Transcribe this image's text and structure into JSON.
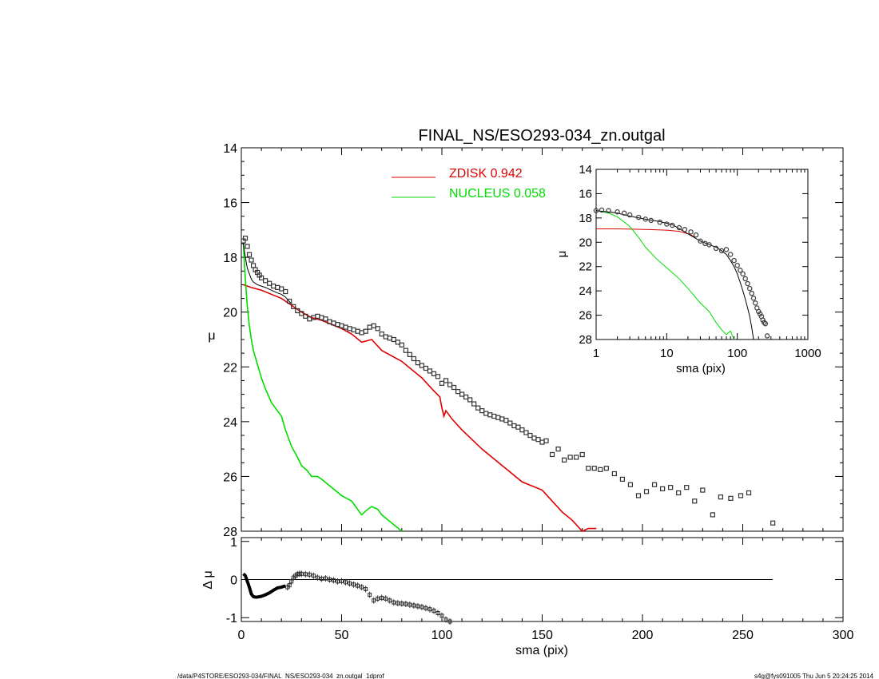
{
  "chart_data": [
    {
      "panel": "main",
      "type": "line",
      "title": "FINAL_NS/ESO293-034_zn.outgal",
      "xlabel": "",
      "ylabel": "μ",
      "xlim": [
        0,
        300
      ],
      "ylim": [
        28,
        14
      ],
      "x_ticks": [
        "0",
        "50",
        "100",
        "150",
        "200",
        "250",
        "300"
      ],
      "y_ticks": [
        "14",
        "16",
        "18",
        "20",
        "22",
        "24",
        "26",
        "28"
      ],
      "legend_position": "top-center",
      "series": [
        {
          "name": "ZDISK",
          "legend_value": "0.942",
          "style": "line",
          "color": "#dd0000",
          "x": [
            1,
            5,
            10,
            15,
            20,
            25,
            30,
            35,
            40,
            45,
            50,
            55,
            60,
            65,
            70,
            75,
            80,
            85,
            90,
            95,
            99,
            100,
            101,
            102,
            105,
            110,
            120,
            130,
            140,
            150,
            160,
            165,
            170,
            173,
            177
          ],
          "y": [
            19.0,
            19.1,
            19.2,
            19.35,
            19.5,
            19.75,
            20.0,
            20.2,
            20.3,
            20.45,
            20.6,
            20.8,
            21.1,
            21.0,
            21.4,
            21.6,
            21.8,
            22.1,
            22.4,
            22.8,
            23.1,
            23.5,
            23.8,
            23.6,
            23.9,
            24.3,
            25.0,
            25.6,
            26.2,
            26.5,
            27.3,
            27.6,
            28.0,
            27.9,
            27.9
          ]
        },
        {
          "name": "NUCLEUS",
          "legend_value": "0.058",
          "style": "line",
          "color": "#00dd00",
          "x": [
            1,
            2,
            3,
            4,
            5,
            6,
            8,
            10,
            12,
            15,
            18,
            20,
            22,
            25,
            28,
            30,
            33,
            35,
            38,
            40,
            45,
            50,
            55,
            57,
            60,
            63,
            65,
            68,
            70,
            75,
            80
          ],
          "y": [
            17.5,
            18.8,
            19.8,
            20.5,
            21.0,
            21.4,
            21.9,
            22.4,
            22.8,
            23.3,
            23.6,
            23.8,
            24.3,
            24.9,
            25.3,
            25.6,
            25.8,
            26.0,
            26.0,
            26.1,
            26.4,
            26.7,
            26.9,
            27.1,
            27.4,
            27.2,
            27.1,
            27.2,
            27.4,
            27.7,
            28.0
          ]
        },
        {
          "name": "",
          "style": "line",
          "color": "#000000",
          "x": [
            1,
            2,
            3,
            4,
            5,
            6,
            8,
            10,
            12,
            15,
            18,
            20,
            22,
            25
          ],
          "y": [
            17.5,
            18.0,
            18.4,
            18.6,
            18.8,
            18.9,
            19.0,
            19.05,
            19.1,
            19.2,
            19.3,
            19.35,
            19.45,
            19.7
          ]
        },
        {
          "name": "",
          "style": "square-markers",
          "color": "#333333",
          "x": [
            1,
            2,
            3,
            4,
            5,
            6,
            7,
            8,
            9,
            10,
            12,
            14,
            16,
            18,
            20,
            22,
            24,
            26,
            28,
            30,
            32,
            34,
            36,
            38,
            40,
            42,
            44,
            46,
            48,
            50,
            52,
            54,
            56,
            58,
            60,
            62,
            64,
            66,
            68,
            70,
            72,
            74,
            76,
            78,
            80,
            82,
            84,
            86,
            88,
            90,
            92,
            94,
            96,
            98,
            100,
            102,
            104,
            106,
            108,
            110,
            112,
            114,
            116,
            118,
            120,
            122,
            124,
            126,
            128,
            130,
            132,
            134,
            136,
            138,
            140,
            142,
            144,
            146,
            148,
            150,
            152,
            155,
            158,
            161,
            164,
            167,
            170,
            173,
            176,
            179,
            182,
            186,
            190,
            194,
            198,
            202,
            206,
            210,
            214,
            218,
            222,
            226,
            230,
            235,
            239,
            244,
            249,
            253,
            265
          ],
          "y": [
            17.4,
            17.3,
            17.6,
            17.9,
            18.1,
            18.3,
            18.45,
            18.55,
            18.65,
            18.75,
            18.85,
            18.95,
            19.05,
            19.1,
            19.15,
            19.25,
            19.6,
            19.8,
            19.95,
            20.05,
            20.15,
            20.25,
            20.2,
            20.15,
            20.2,
            20.25,
            20.35,
            20.4,
            20.45,
            20.5,
            20.55,
            20.6,
            20.65,
            20.7,
            20.75,
            20.7,
            20.55,
            20.5,
            20.6,
            20.8,
            20.9,
            20.95,
            21.0,
            21.1,
            21.2,
            21.4,
            21.55,
            21.7,
            21.85,
            21.95,
            22.05,
            22.15,
            22.25,
            22.35,
            22.6,
            22.5,
            22.65,
            22.75,
            22.9,
            23.0,
            23.1,
            23.2,
            23.35,
            23.5,
            23.6,
            23.7,
            23.75,
            23.8,
            23.85,
            23.9,
            23.95,
            24.05,
            24.15,
            24.2,
            24.3,
            24.4,
            24.5,
            24.6,
            24.65,
            24.75,
            24.7,
            25.2,
            25.0,
            25.4,
            25.3,
            25.3,
            25.2,
            25.7,
            25.7,
            25.75,
            25.7,
            25.9,
            26.1,
            26.3,
            26.7,
            26.55,
            26.3,
            26.45,
            26.4,
            26.6,
            26.4,
            26.9,
            26.5,
            27.4,
            26.75,
            26.8,
            26.7,
            26.6,
            27.7
          ]
        }
      ]
    },
    {
      "panel": "residual",
      "type": "scatter",
      "xlabel": "sma (pix)",
      "ylabel": "Δ μ",
      "xlim": [
        0,
        300
      ],
      "ylim": [
        -1.1,
        1.1
      ],
      "x_ticks": [
        "0",
        "50",
        "100",
        "150",
        "200",
        "250",
        "300"
      ],
      "y_ticks": [
        "1",
        "0",
        "-1"
      ],
      "reference_line": {
        "y": 0,
        "x_range": [
          0,
          265
        ]
      },
      "series": [
        {
          "name": "",
          "style": "thick-line-then-markers",
          "color": "#000000",
          "x": [
            1,
            2,
            3,
            4,
            5,
            6,
            7,
            8,
            10,
            12,
            14,
            16,
            18,
            20,
            21,
            22,
            23,
            24,
            25,
            26,
            27,
            28,
            29,
            30,
            32,
            34,
            36,
            38,
            40,
            42,
            44,
            46,
            48,
            50,
            52,
            54,
            56,
            58,
            60,
            62,
            64,
            66,
            68,
            70,
            72,
            74,
            76,
            78,
            80,
            82,
            84,
            86,
            88,
            90,
            92,
            94,
            96,
            98,
            100,
            102,
            104
          ],
          "y": [
            0.15,
            0.1,
            -0.05,
            -0.2,
            -0.38,
            -0.45,
            -0.46,
            -0.46,
            -0.44,
            -0.4,
            -0.35,
            -0.28,
            -0.22,
            -0.2,
            -0.18,
            -0.17,
            -0.2,
            -0.15,
            -0.05,
            0.05,
            0.1,
            0.14,
            0.15,
            0.15,
            0.14,
            0.13,
            0.1,
            0.05,
            0.02,
            0.03,
            0.0,
            -0.02,
            -0.05,
            -0.04,
            -0.07,
            -0.1,
            -0.13,
            -0.16,
            -0.2,
            -0.25,
            -0.4,
            -0.55,
            -0.5,
            -0.48,
            -0.5,
            -0.55,
            -0.6,
            -0.62,
            -0.63,
            -0.64,
            -0.66,
            -0.68,
            -0.7,
            -0.72,
            -0.75,
            -0.78,
            -0.82,
            -0.88,
            -0.95,
            -1.05,
            -1.1
          ]
        }
      ]
    },
    {
      "panel": "inset",
      "type": "line",
      "xlabel": "sma (pix)",
      "ylabel": "μ",
      "xscale": "log",
      "xlim": [
        1,
        1000
      ],
      "ylim": [
        28,
        14
      ],
      "x_ticks": [
        "1",
        "10",
        "100",
        "1000"
      ],
      "y_ticks": [
        "14",
        "16",
        "18",
        "20",
        "22",
        "24",
        "26",
        "28"
      ],
      "series": [
        {
          "name": "ZDISK",
          "style": "line",
          "color": "#dd0000",
          "x": [
            1,
            2,
            5,
            10,
            15,
            20,
            25
          ],
          "y": [
            18.9,
            18.9,
            18.95,
            19.0,
            19.1,
            19.3,
            19.55
          ]
        },
        {
          "name": "NUCLEUS",
          "style": "line",
          "color": "#00dd00",
          "x": [
            1,
            1.5,
            2,
            3,
            4,
            5,
            7,
            10,
            15,
            20,
            30,
            40,
            50,
            60,
            70,
            80,
            90
          ],
          "y": [
            17.4,
            17.6,
            17.9,
            18.7,
            19.6,
            20.4,
            21.3,
            22.1,
            23.0,
            23.8,
            25.0,
            25.7,
            26.6,
            27.2,
            27.6,
            27.3,
            28.0
          ]
        },
        {
          "name": "",
          "style": "line",
          "color": "#000000",
          "x": [
            1,
            1.5,
            2,
            3,
            5,
            8,
            12,
            20,
            30,
            40,
            50,
            60,
            70,
            80,
            90,
            100,
            110,
            120,
            130,
            140,
            150,
            160,
            170
          ],
          "y": [
            17.4,
            17.5,
            17.6,
            17.85,
            18.1,
            18.3,
            18.55,
            19.3,
            19.9,
            20.2,
            20.4,
            20.7,
            21.0,
            21.5,
            22.0,
            22.6,
            23.3,
            24.0,
            24.7,
            25.4,
            26.1,
            27.0,
            28.0
          ]
        },
        {
          "name": "",
          "style": "circle-markers",
          "color": "#444444",
          "x": [
            1,
            1.2,
            1.5,
            2,
            2.5,
            3,
            4,
            5,
            6,
            8,
            10,
            12,
            15,
            18,
            22,
            26,
            30,
            35,
            40,
            50,
            60,
            70,
            80,
            90,
            100,
            110,
            120,
            130,
            140,
            150,
            160,
            170,
            180,
            190,
            200,
            210,
            220,
            230,
            240,
            250,
            265
          ],
          "y": [
            17.4,
            17.35,
            17.4,
            17.5,
            17.6,
            17.75,
            17.95,
            18.1,
            18.2,
            18.35,
            18.5,
            18.6,
            18.8,
            18.95,
            19.15,
            19.4,
            19.9,
            20.1,
            20.2,
            20.5,
            20.7,
            20.6,
            21.0,
            21.5,
            21.9,
            22.3,
            22.6,
            23.0,
            23.4,
            23.8,
            24.2,
            24.6,
            25.0,
            25.4,
            25.7,
            25.9,
            26.1,
            26.4,
            26.6,
            26.7,
            27.7
          ]
        }
      ]
    }
  ],
  "footer": {
    "left": "/data/P4STORE/ESO293-034/FINAL_NS/ESO293-034_zn.outgal_1dprof",
    "right": "s4g@fys091005  Thu Jun  5 20:24:25 2014"
  }
}
